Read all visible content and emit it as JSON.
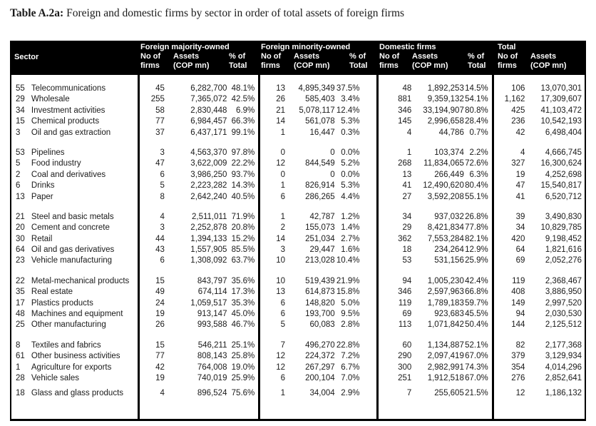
{
  "title": {
    "label": "Table A.2a:",
    "text": "Foreign and domestic firms by sector in order of total assets of foreign firms"
  },
  "colors": {
    "header_bg": "#000000",
    "header_text": "#ffffff",
    "body_text": "#1a1a1a",
    "border": "#000000"
  },
  "table": {
    "header": {
      "sector": "Sector",
      "groups": [
        {
          "title": "Foreign majority-owned",
          "cols": [
            [
              "No of",
              "firms"
            ],
            [
              "Assets",
              "(COP mn)"
            ],
            [
              "% of",
              "Total"
            ]
          ]
        },
        {
          "title": "Foreign minority-owned",
          "cols": [
            [
              "No of",
              "firms"
            ],
            [
              "Assets",
              "(COP mn)"
            ],
            [
              "% of",
              "Total"
            ]
          ]
        },
        {
          "title": "Domestic firms",
          "cols": [
            [
              "No of",
              "firms"
            ],
            [
              "Assets",
              "(COP mn)"
            ],
            [
              "% of",
              "Total"
            ]
          ]
        },
        {
          "title": "Total",
          "cols": [
            [
              "No of",
              "firms"
            ],
            [
              "Assets",
              "(COP mn)"
            ]
          ]
        }
      ]
    },
    "groups": [
      {
        "rows": [
          [
            "55",
            "Telecommunications",
            "45",
            "6,282,700",
            "48.1%",
            "13",
            "4,895,349",
            "37.5%",
            "48",
            "1,892,253",
            "14.5%",
            "106",
            "13,070,301"
          ],
          [
            "29",
            "Wholesale",
            "255",
            "7,365,072",
            "42.5%",
            "26",
            "585,403",
            "3.4%",
            "881",
            "9,359,132",
            "54.1%",
            "1,162",
            "17,309,607"
          ],
          [
            "34",
            "Investment activities",
            "58",
            "2,830,448",
            "6.9%",
            "21",
            "5,078,117",
            "12.4%",
            "346",
            "33,194,907",
            "80.8%",
            "425",
            "41,103,472"
          ],
          [
            "15",
            "Chemical products",
            "77",
            "6,984,457",
            "66.3%",
            "14",
            "561,078",
            "5.3%",
            "145",
            "2,996,658",
            "28.4%",
            "236",
            "10,542,193"
          ],
          [
            "3",
            "Oil and gas extraction",
            "37",
            "6,437,171",
            "99.1%",
            "1",
            "16,447",
            "0.3%",
            "4",
            "44,786",
            "0.7%",
            "42",
            "6,498,404"
          ]
        ]
      },
      {
        "rows": [
          [
            "53",
            "Pipelines",
            "3",
            "4,563,370",
            "97.8%",
            "0",
            "0",
            "0.0%",
            "1",
            "103,374",
            "2.2%",
            "4",
            "4,666,745"
          ],
          [
            "5",
            "Food industry",
            "47",
            "3,622,009",
            "22.2%",
            "12",
            "844,549",
            "5.2%",
            "268",
            "11,834,065",
            "72.6%",
            "327",
            "16,300,624"
          ],
          [
            "2",
            "Coal and derivatives",
            "6",
            "3,986,250",
            "93.7%",
            "0",
            "0",
            "0.0%",
            "13",
            "266,449",
            "6.3%",
            "19",
            "4,252,698"
          ],
          [
            "6",
            "Drinks",
            "5",
            "2,223,282",
            "14.3%",
            "1",
            "826,914",
            "5.3%",
            "41",
            "12,490,620",
            "80.4%",
            "47",
            "15,540,817"
          ],
          [
            "13",
            "Paper",
            "8",
            "2,642,240",
            "40.5%",
            "6",
            "286,265",
            "4.4%",
            "27",
            "3,592,208",
            "55.1%",
            "41",
            "6,520,712"
          ]
        ]
      },
      {
        "rows": [
          [
            "21",
            "Steel and basic metals",
            "4",
            "2,511,011",
            "71.9%",
            "1",
            "42,787",
            "1.2%",
            "34",
            "937,032",
            "26.8%",
            "39",
            "3,490,830"
          ],
          [
            "20",
            "Cement and concrete",
            "3",
            "2,252,878",
            "20.8%",
            "2",
            "155,073",
            "1.4%",
            "29",
            "8,421,834",
            "77.8%",
            "34",
            "10,829,785"
          ],
          [
            "30",
            "Retail",
            "44",
            "1,394,133",
            "15.2%",
            "14",
            "251,034",
            "2.7%",
            "362",
            "7,553,284",
            "82.1%",
            "420",
            "9,198,452"
          ],
          [
            "64",
            "Oil and gas derivatives",
            "43",
            "1,557,905",
            "85.5%",
            "3",
            "29,447",
            "1.6%",
            "18",
            "234,264",
            "12.9%",
            "64",
            "1,821,616"
          ],
          [
            "23",
            "Vehicle manufacturing",
            "6",
            "1,308,092",
            "63.7%",
            "10",
            "213,028",
            "10.4%",
            "53",
            "531,156",
            "25.9%",
            "69",
            "2,052,276"
          ]
        ]
      },
      {
        "rows": [
          [
            "22",
            "Metal-mechanical products",
            "15",
            "843,797",
            "35.6%",
            "10",
            "519,439",
            "21.9%",
            "94",
            "1,005,230",
            "42.4%",
            "119",
            "2,368,467"
          ],
          [
            "35",
            "Real estate",
            "49",
            "674,114",
            "17.3%",
            "13",
            "614,873",
            "15.8%",
            "346",
            "2,597,963",
            "66.8%",
            "408",
            "3,886,950"
          ],
          [
            "17",
            "Plastics products",
            "24",
            "1,059,517",
            "35.3%",
            "6",
            "148,820",
            "5.0%",
            "119",
            "1,789,183",
            "59.7%",
            "149",
            "2,997,520"
          ],
          [
            "48",
            "Machines and equipment",
            "19",
            "913,147",
            "45.0%",
            "6",
            "193,700",
            "9.5%",
            "69",
            "923,683",
            "45.5%",
            "94",
            "2,030,530"
          ],
          [
            "25",
            "Other manufacturing",
            "26",
            "993,588",
            "46.7%",
            "5",
            "60,083",
            "2.8%",
            "113",
            "1,071,842",
            "50.4%",
            "144",
            "2,125,512"
          ]
        ]
      },
      {
        "rows": [
          [
            "8",
            "Textiles and fabrics",
            "15",
            "546,211",
            "25.1%",
            "7",
            "496,270",
            "22.8%",
            "60",
            "1,134,887",
            "52.1%",
            "82",
            "2,177,368"
          ],
          [
            "61",
            "Other business activities",
            "77",
            "808,143",
            "25.8%",
            "12",
            "224,372",
            "7.2%",
            "290",
            "2,097,419",
            "67.0%",
            "379",
            "3,129,934"
          ],
          [
            "1",
            "Agriculture for exports",
            "42",
            "764,008",
            "19.0%",
            "12",
            "267,297",
            "6.7%",
            "300",
            "2,982,991",
            "74.3%",
            "354",
            "4,014,296"
          ],
          [
            "28",
            "Vehicle sales",
            "19",
            "740,019",
            "25.9%",
            "6",
            "200,104",
            "7.0%",
            "251",
            "1,912,518",
            "67.0%",
            "276",
            "2,852,641"
          ],
          [
            "18",
            "Glass and glass products",
            "4",
            "896,524",
            "75.6%",
            "1",
            "34,004",
            "2.9%",
            "7",
            "255,605",
            "21.5%",
            "12",
            "1,186,132"
          ]
        ]
      }
    ]
  }
}
